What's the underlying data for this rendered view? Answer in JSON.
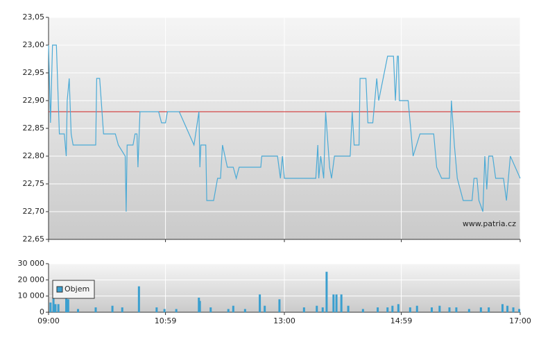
{
  "chart_data": [
    {
      "type": "line",
      "color": "#4aaad6",
      "watermark": "www.patria.cz",
      "ylim": [
        22.65,
        23.05
      ],
      "yticks": [
        {
          "value": 22.65,
          "label": "22,65"
        },
        {
          "value": 22.7,
          "label": "22,70"
        },
        {
          "value": 22.75,
          "label": "22,75"
        },
        {
          "value": 22.8,
          "label": "22,80"
        },
        {
          "value": 22.85,
          "label": "22,85"
        },
        {
          "value": 22.9,
          "label": "22,90"
        },
        {
          "value": 22.95,
          "label": "22,95"
        },
        {
          "value": 23.0,
          "label": "23,00"
        },
        {
          "value": 23.05,
          "label": "23,05"
        }
      ],
      "reference_line": {
        "value": 22.88,
        "color": "#d02020"
      },
      "x": [
        "09:00",
        "09:02",
        "09:04",
        "09:08",
        "09:11",
        "09:16",
        "09:18",
        "09:19",
        "09:21",
        "09:23",
        "09:25",
        "09:48",
        "09:49",
        "09:52",
        "09:56",
        "10:08",
        "10:11",
        "10:18",
        "10:19",
        "10:20",
        "10:26",
        "10:28",
        "10:30",
        "10:31",
        "10:33",
        "10:52",
        "10:55",
        "10:59",
        "11:01",
        "11:13",
        "11:28",
        "11:33",
        "11:34",
        "11:35",
        "11:40",
        "11:41",
        "11:48",
        "11:52",
        "11:55",
        "11:57",
        "12:02",
        "12:08",
        "12:11",
        "12:14",
        "12:36",
        "12:37",
        "12:53",
        "12:56",
        "12:58",
        "13:00",
        "13:32",
        "13:34",
        "13:35",
        "13:37",
        "13:40",
        "13:42",
        "13:46",
        "13:48",
        "13:51",
        "14:07",
        "14:09",
        "14:11",
        "14:16",
        "14:17",
        "14:23",
        "14:25",
        "14:30",
        "14:34",
        "14:36",
        "14:45",
        "14:51",
        "14:53",
        "14:55",
        "14:56",
        "14:57",
        "15:06",
        "15:09",
        "15:11",
        "15:18",
        "15:32",
        "15:35",
        "15:40",
        "15:48",
        "15:50",
        "15:53",
        "15:56",
        "16:02",
        "16:11",
        "16:13",
        "16:16",
        "16:18",
        "16:22",
        "16:24",
        "16:26",
        "16:28",
        "16:32",
        "16:35",
        "16:43",
        "16:46",
        "16:50",
        "17:00"
      ],
      "values": [
        23.0,
        22.86,
        23.0,
        23.0,
        22.84,
        22.84,
        22.8,
        22.9,
        22.94,
        22.84,
        22.82,
        22.82,
        22.94,
        22.94,
        22.84,
        22.84,
        22.82,
        22.8,
        22.7,
        22.82,
        22.82,
        22.84,
        22.84,
        22.78,
        22.88,
        22.88,
        22.86,
        22.86,
        22.88,
        22.88,
        22.82,
        22.88,
        22.78,
        22.82,
        22.82,
        22.72,
        22.72,
        22.76,
        22.76,
        22.82,
        22.78,
        22.78,
        22.76,
        22.78,
        22.78,
        22.8,
        22.8,
        22.76,
        22.8,
        22.76,
        22.76,
        22.82,
        22.76,
        22.8,
        22.76,
        22.88,
        22.78,
        22.76,
        22.8,
        22.8,
        22.88,
        22.82,
        22.82,
        22.94,
        22.94,
        22.86,
        22.86,
        22.94,
        22.9,
        22.98,
        22.98,
        22.9,
        22.98,
        22.98,
        22.9,
        22.9,
        22.84,
        22.8,
        22.84,
        22.84,
        22.78,
        22.76,
        22.76,
        22.9,
        22.82,
        22.76,
        22.72,
        22.72,
        22.76,
        22.76,
        22.72,
        22.7,
        22.8,
        22.74,
        22.8,
        22.8,
        22.76,
        22.76,
        22.72,
        22.8,
        22.76
      ]
    },
    {
      "type": "bar",
      "legend": "top-left",
      "xlim": [
        "09:00",
        "17:00"
      ],
      "xticks": [
        "09:00",
        "10:59",
        "13:00",
        "14:59",
        "17:00"
      ],
      "ylim": [
        0,
        30000
      ],
      "yticks": [
        0,
        {
          "value": 10000,
          "label": "10 000"
        },
        {
          "value": 20000,
          "label": "20 000"
        },
        {
          "value": 30000,
          "label": "30 000"
        }
      ],
      "x": [
        "09:02",
        "09:05",
        "09:07",
        "09:10",
        "09:18",
        "09:20",
        "09:30",
        "09:48",
        "10:05",
        "10:15",
        "10:32",
        "10:50",
        "10:58",
        "11:10",
        "11:33",
        "11:34",
        "11:45",
        "12:03",
        "12:08",
        "12:20",
        "12:35",
        "12:40",
        "12:55",
        "13:20",
        "13:33",
        "13:39",
        "13:43",
        "13:50",
        "13:53",
        "13:58",
        "14:05",
        "14:20",
        "14:35",
        "14:45",
        "14:50",
        "14:56",
        "15:08",
        "15:15",
        "15:30",
        "15:38",
        "15:48",
        "15:55",
        "16:08",
        "16:20",
        "16:28",
        "16:42",
        "16:47",
        "16:53",
        "16:59"
      ],
      "series": [
        {
          "name": "Objem",
          "color": "#3a9fcf",
          "values": [
            6000,
            10000,
            5000,
            5000,
            12000,
            8000,
            2000,
            3000,
            4000,
            3000,
            16000,
            3000,
            2000,
            2000,
            9000,
            7000,
            3000,
            2000,
            4000,
            2000,
            11000,
            4000,
            8000,
            3000,
            4000,
            3000,
            25000,
            11000,
            11000,
            11000,
            4000,
            2000,
            3000,
            3000,
            4000,
            5000,
            3000,
            4000,
            3000,
            4000,
            3000,
            3000,
            2000,
            3000,
            3000,
            5000,
            4000,
            3000,
            2000
          ]
        }
      ]
    }
  ]
}
